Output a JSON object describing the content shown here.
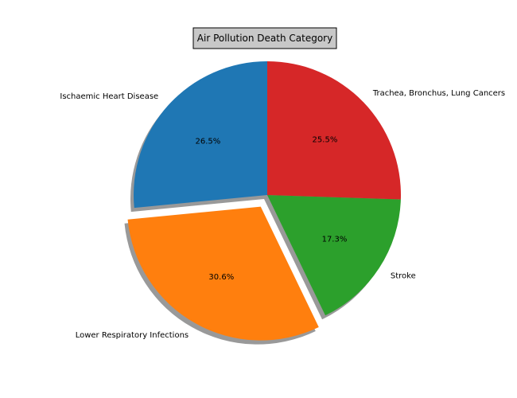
{
  "chart_data": {
    "type": "pie",
    "title": "Air Pollution Death Category",
    "start_angle_deg": 90,
    "direction": "counterclockwise",
    "shadow": true,
    "slices": [
      {
        "label": "Ischaemic Heart Disease",
        "value": 26.5,
        "pct_label": "26.5%",
        "color": "#1f77b4",
        "explode": 0
      },
      {
        "label": "Lower Respiratory Infections",
        "value": 30.6,
        "pct_label": "30.6%",
        "color": "#ff7f0e",
        "explode": 0.1
      },
      {
        "label": "Stroke",
        "value": 17.3,
        "pct_label": "17.3%",
        "color": "#2ca02c",
        "explode": 0
      },
      {
        "label": "Trachea, Bronchus, Lung Cancers",
        "value": 25.5,
        "pct_label": "25.5%",
        "color": "#d62728",
        "explode": 0
      }
    ]
  }
}
